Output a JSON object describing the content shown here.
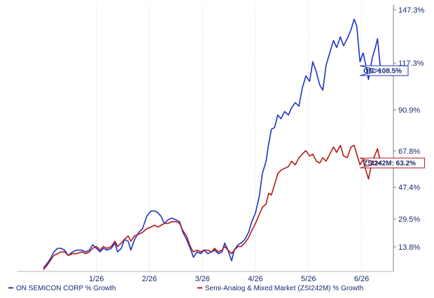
{
  "chart_data": {
    "type": "line",
    "x": [
      "1/26",
      "2/26",
      "3/26",
      "4/26",
      "5/26",
      "6/26"
    ],
    "y_ticks": [
      "13.8%",
      "29.5%",
      "47.4%",
      "67.8%",
      "90.9%",
      "117.3%",
      "147.3%"
    ],
    "ylim": [
      0,
      150
    ],
    "grid": "vertical dotted",
    "legend_position": "bottom",
    "series": [
      {
        "name": "ON SEMICON CORP % Growth",
        "color": "#1f35c4",
        "callout": "ON: 108.5%",
        "values": [
          [
            0.0,
            2
          ],
          [
            0.06,
            4
          ],
          [
            0.13,
            7
          ],
          [
            0.2,
            11
          ],
          [
            0.27,
            13
          ],
          [
            0.33,
            13
          ],
          [
            0.4,
            12
          ],
          [
            0.47,
            9
          ],
          [
            0.55,
            11
          ],
          [
            0.63,
            12
          ],
          [
            0.72,
            12
          ],
          [
            0.8,
            11
          ],
          [
            0.87,
            12
          ],
          [
            0.93,
            15
          ],
          [
            1.0,
            13
          ],
          [
            1.07,
            11
          ],
          [
            1.13,
            13
          ],
          [
            1.2,
            12
          ],
          [
            1.28,
            13
          ],
          [
            1.35,
            16
          ],
          [
            1.4,
            11
          ],
          [
            1.47,
            13
          ],
          [
            1.53,
            18
          ],
          [
            1.6,
            17
          ],
          [
            1.65,
            12
          ],
          [
            1.72,
            18
          ],
          [
            1.8,
            22
          ],
          [
            1.87,
            24
          ],
          [
            1.95,
            31
          ],
          [
            2.03,
            34
          ],
          [
            2.1,
            34
          ],
          [
            2.16,
            33
          ],
          [
            2.22,
            31
          ],
          [
            2.28,
            27
          ],
          [
            2.35,
            29
          ],
          [
            2.42,
            30
          ],
          [
            2.5,
            29
          ],
          [
            2.57,
            28
          ],
          [
            2.63,
            22
          ],
          [
            2.7,
            18
          ],
          [
            2.77,
            13
          ],
          [
            2.83,
            8
          ],
          [
            2.9,
            11
          ],
          [
            2.97,
            10
          ],
          [
            3.03,
            12
          ],
          [
            3.1,
            10
          ],
          [
            3.17,
            11
          ],
          [
            3.23,
            12
          ],
          [
            3.3,
            10
          ],
          [
            3.37,
            11
          ],
          [
            3.42,
            16
          ],
          [
            3.48,
            12
          ],
          [
            3.55,
            6
          ],
          [
            3.6,
            12
          ],
          [
            3.67,
            15
          ],
          [
            3.73,
            16
          ],
          [
            3.8,
            18
          ],
          [
            3.87,
            22
          ],
          [
            3.93,
            28
          ],
          [
            4.0,
            33
          ],
          [
            4.07,
            42
          ],
          [
            4.13,
            55
          ],
          [
            4.2,
            62
          ],
          [
            4.25,
            72
          ],
          [
            4.3,
            80
          ],
          [
            4.36,
            81
          ],
          [
            4.42,
            88
          ],
          [
            4.48,
            86
          ],
          [
            4.55,
            90
          ],
          [
            4.62,
            88
          ],
          [
            4.68,
            92
          ],
          [
            4.75,
            95
          ],
          [
            4.82,
            93
          ],
          [
            4.88,
            103
          ],
          [
            4.95,
            110
          ],
          [
            5.02,
            107
          ],
          [
            5.08,
            118
          ],
          [
            5.15,
            112
          ],
          [
            5.21,
            105
          ],
          [
            5.27,
            102
          ],
          [
            5.33,
            116
          ],
          [
            5.4,
            123
          ],
          [
            5.47,
            130
          ],
          [
            5.53,
            126
          ],
          [
            5.6,
            132
          ],
          [
            5.66,
            127
          ],
          [
            5.73,
            131
          ],
          [
            5.8,
            136
          ],
          [
            5.86,
            142
          ],
          [
            5.91,
            138
          ],
          [
            5.97,
            118
          ],
          [
            6.03,
            123
          ],
          [
            6.08,
            116
          ],
          [
            6.13,
            108
          ],
          [
            6.2,
            120
          ],
          [
            6.26,
            126
          ],
          [
            6.3,
            131
          ],
          [
            6.36,
            113
          ]
        ]
      },
      {
        "name": "Semi-Analog & Mixed Market (ZSI242M) % Growth",
        "color": "#b01a1a",
        "callout": "ZSI242M: 63.2%",
        "values": [
          [
            0.0,
            1
          ],
          [
            0.06,
            3
          ],
          [
            0.13,
            6
          ],
          [
            0.2,
            9
          ],
          [
            0.27,
            10
          ],
          [
            0.33,
            11
          ],
          [
            0.4,
            11
          ],
          [
            0.47,
            9
          ],
          [
            0.55,
            10
          ],
          [
            0.63,
            10
          ],
          [
            0.72,
            11
          ],
          [
            0.8,
            10
          ],
          [
            0.87,
            11
          ],
          [
            0.93,
            13
          ],
          [
            1.0,
            14
          ],
          [
            1.07,
            12
          ],
          [
            1.13,
            14
          ],
          [
            1.2,
            13
          ],
          [
            1.28,
            14
          ],
          [
            1.35,
            17
          ],
          [
            1.4,
            14
          ],
          [
            1.47,
            16
          ],
          [
            1.53,
            18
          ],
          [
            1.6,
            20
          ],
          [
            1.65,
            17
          ],
          [
            1.72,
            20
          ],
          [
            1.8,
            21
          ],
          [
            1.87,
            22
          ],
          [
            1.95,
            24
          ],
          [
            2.03,
            25
          ],
          [
            2.1,
            26
          ],
          [
            2.16,
            25
          ],
          [
            2.22,
            26
          ],
          [
            2.28,
            27
          ],
          [
            2.35,
            27
          ],
          [
            2.42,
            28
          ],
          [
            2.5,
            28
          ],
          [
            2.57,
            27
          ],
          [
            2.63,
            23
          ],
          [
            2.7,
            20
          ],
          [
            2.77,
            14
          ],
          [
            2.83,
            11
          ],
          [
            2.9,
            12
          ],
          [
            2.97,
            11
          ],
          [
            3.03,
            12
          ],
          [
            3.1,
            12
          ],
          [
            3.17,
            11
          ],
          [
            3.23,
            13
          ],
          [
            3.3,
            11
          ],
          [
            3.37,
            12
          ],
          [
            3.42,
            14
          ],
          [
            3.48,
            12
          ],
          [
            3.55,
            10
          ],
          [
            3.6,
            12
          ],
          [
            3.67,
            14
          ],
          [
            3.73,
            14
          ],
          [
            3.8,
            16
          ],
          [
            3.87,
            19
          ],
          [
            3.93,
            23
          ],
          [
            4.0,
            27
          ],
          [
            4.07,
            32
          ],
          [
            4.13,
            36
          ],
          [
            4.2,
            38
          ],
          [
            4.25,
            44
          ],
          [
            4.3,
            43
          ],
          [
            4.36,
            49
          ],
          [
            4.42,
            55
          ],
          [
            4.48,
            57
          ],
          [
            4.55,
            58
          ],
          [
            4.62,
            59
          ],
          [
            4.68,
            62
          ],
          [
            4.75,
            60
          ],
          [
            4.82,
            64
          ],
          [
            4.88,
            66
          ],
          [
            4.95,
            68
          ],
          [
            5.02,
            65
          ],
          [
            5.08,
            66
          ],
          [
            5.15,
            62
          ],
          [
            5.21,
            61
          ],
          [
            5.27,
            64
          ],
          [
            5.33,
            62
          ],
          [
            5.4,
            66
          ],
          [
            5.47,
            70
          ],
          [
            5.53,
            67
          ],
          [
            5.6,
            71
          ],
          [
            5.66,
            65
          ],
          [
            5.73,
            64
          ],
          [
            5.8,
            70
          ],
          [
            5.86,
            71
          ],
          [
            5.91,
            66
          ],
          [
            5.97,
            60
          ],
          [
            6.03,
            63
          ],
          [
            6.08,
            57
          ],
          [
            6.13,
            52
          ],
          [
            6.2,
            62
          ],
          [
            6.26,
            66
          ],
          [
            6.3,
            69
          ],
          [
            6.36,
            61
          ]
        ]
      }
    ]
  }
}
